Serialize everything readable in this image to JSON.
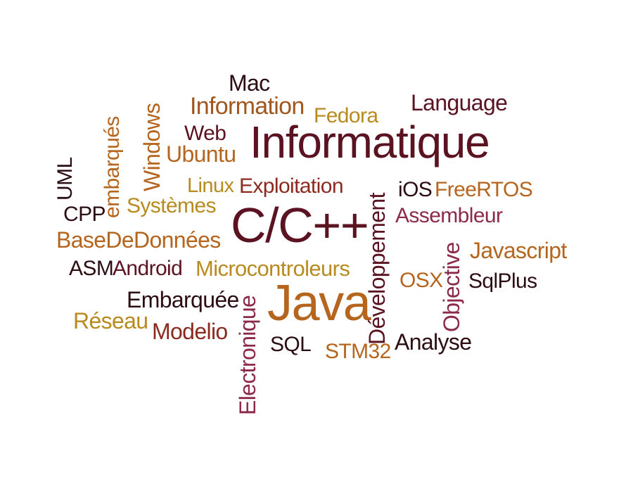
{
  "palette": {
    "dark": "#2b0d12",
    "maroon": "#5b1322",
    "red": "#8c2a1f",
    "plum": "#8b2a4a",
    "orange": "#b5651d",
    "gold": "#b98a1f"
  },
  "words": [
    {
      "text": "Informatique",
      "color": "#5b1322"
    },
    {
      "text": "C/C++",
      "color": "#5b1322"
    },
    {
      "text": "Java",
      "color": "#b5651d"
    },
    {
      "text": "Mac",
      "color": "#2b0d12"
    },
    {
      "text": "Information",
      "color": "#a0561c"
    },
    {
      "text": "Fedora",
      "color": "#b98a1f"
    },
    {
      "text": "Language",
      "color": "#5b1322"
    },
    {
      "text": "Web",
      "color": "#5b1322"
    },
    {
      "text": "Ubuntu",
      "color": "#b5651d"
    },
    {
      "text": "Linux",
      "color": "#b98a1f"
    },
    {
      "text": "Exploitation",
      "color": "#8c2a1f"
    },
    {
      "text": "iOS",
      "color": "#2b0d12"
    },
    {
      "text": "FreeRTOS",
      "color": "#b5651d"
    },
    {
      "text": "Assembleur",
      "color": "#8b2a4a"
    },
    {
      "text": "Javascript",
      "color": "#b5651d"
    },
    {
      "text": "SqlPlus",
      "color": "#2b0d12"
    },
    {
      "text": "OSX",
      "color": "#b5651d"
    },
    {
      "text": "CPP",
      "color": "#2b0d12"
    },
    {
      "text": "Systèmes",
      "color": "#b98a1f"
    },
    {
      "text": "BaseDeDonnées",
      "color": "#b5651d"
    },
    {
      "text": "ASM",
      "color": "#2b0d12"
    },
    {
      "text": "Android",
      "color": "#5b1322"
    },
    {
      "text": "Microcontroleurs",
      "color": "#b98a1f"
    },
    {
      "text": "Embarquée",
      "color": "#2b0d12"
    },
    {
      "text": "Réseau",
      "color": "#b98a1f"
    },
    {
      "text": "Modelio",
      "color": "#8c2a1f"
    },
    {
      "text": "SQL",
      "color": "#2b0d12"
    },
    {
      "text": "STM32",
      "color": "#b5651d"
    },
    {
      "text": "Analyse",
      "color": "#2b0d12"
    },
    {
      "text": "Windows",
      "color": "#b5651d"
    },
    {
      "text": "embarqués",
      "color": "#b5651d"
    },
    {
      "text": "UML",
      "color": "#2b0d12"
    },
    {
      "text": "Développement",
      "color": "#5b1322"
    },
    {
      "text": "Objective",
      "color": "#8b2a4a"
    },
    {
      "text": "Electronique",
      "color": "#8b2a4a"
    }
  ]
}
